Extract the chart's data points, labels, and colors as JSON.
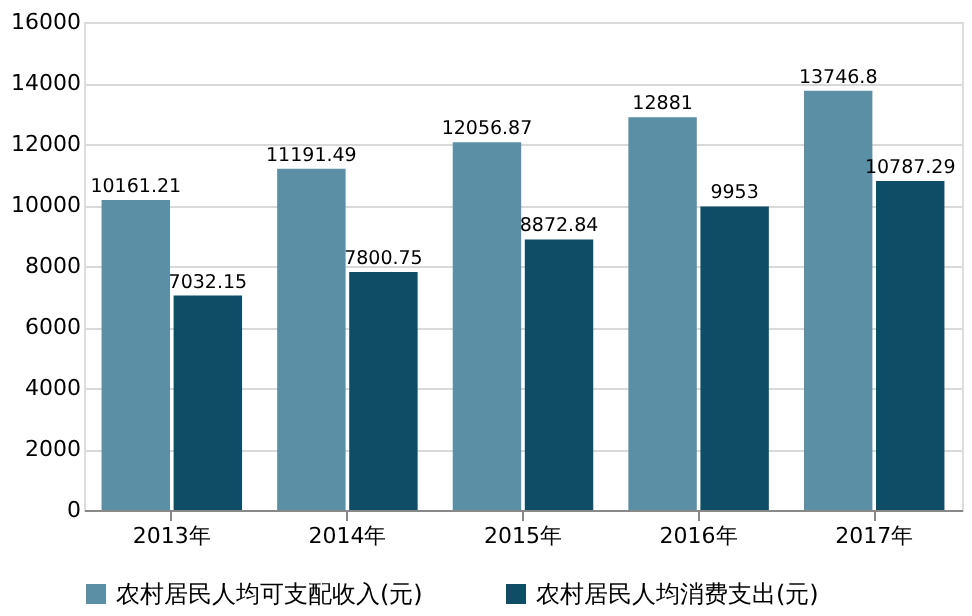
{
  "chart_data": {
    "type": "bar",
    "categories": [
      "2013年",
      "2014年",
      "2015年",
      "2016年",
      "2017年"
    ],
    "series": [
      {
        "name": "农村居民人均可支配收入(元)",
        "color": "#5b8fa6",
        "values": [
          10161.21,
          11191.49,
          12056.87,
          12881,
          13746.8
        ]
      },
      {
        "name": "农村居民人均消费支出(元)",
        "color": "#0f4d66",
        "values": [
          7032.15,
          7800.75,
          8872.84,
          9953,
          10787.29
        ]
      }
    ],
    "ylim": [
      0,
      16000
    ],
    "yticks": [
      0,
      2000,
      4000,
      6000,
      8000,
      10000,
      12000,
      14000,
      16000
    ],
    "grid": "y",
    "legend": "bottom",
    "data_labels": true
  }
}
